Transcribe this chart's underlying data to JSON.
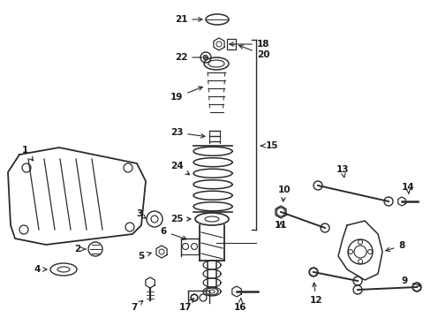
{
  "background_color": "#ffffff",
  "line_color": "#2a2a2a",
  "text_color": "#1a1a1a",
  "fig_w": 4.89,
  "fig_h": 3.6,
  "dpi": 100
}
